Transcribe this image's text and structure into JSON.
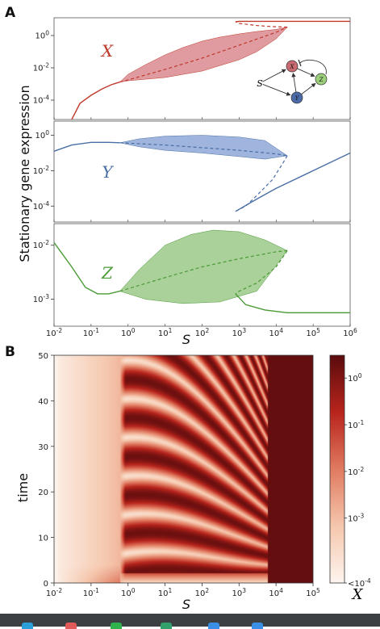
{
  "panels": {
    "a": "A",
    "b": "B"
  },
  "chart_data": [
    {
      "type": "line",
      "panel": "A",
      "ylabel": "Stationary gene expression",
      "xlabel": "S",
      "x_scale": "log",
      "xlim": [
        0.01,
        1000000
      ],
      "x_ticks": [
        "10-2",
        "10-1",
        "100",
        "101",
        "102",
        "103",
        "104",
        "105",
        "106"
      ],
      "subplots": [
        {
          "name": "X",
          "color": "#c0392b",
          "fill": "#d98a8f",
          "ylim_log": [
            -5.2,
            1.1
          ],
          "y_ticks": [
            {
              "v": 0,
              "label": "10^0"
            },
            {
              "v": -2,
              "label": "10^-2"
            },
            {
              "v": -4,
              "label": "10^-4"
            }
          ],
          "stable_low": [
            [
              0.03,
              -5.2
            ],
            [
              0.05,
              -4.2
            ],
            [
              0.1,
              -3.7
            ],
            [
              0.2,
              -3.3
            ],
            [
              0.35,
              -3.05
            ],
            [
              0.6,
              -2.88
            ]
          ],
          "unstable": [
            [
              0.6,
              -2.88
            ],
            [
              1,
              -2.75
            ],
            [
              10,
              -2.1
            ],
            [
              100,
              -1.4
            ],
            [
              1000,
              -0.6
            ],
            [
              10000,
              0.2
            ],
            [
              20000,
              0.52
            ]
          ],
          "osc_max": [
            [
              0.6,
              -2.88
            ],
            [
              1,
              -2.4
            ],
            [
              3,
              -1.8
            ],
            [
              10,
              -1.2
            ],
            [
              30,
              -0.75
            ],
            [
              100,
              -0.35
            ],
            [
              300,
              -0.1
            ],
            [
              1000,
              0.1
            ],
            [
              3000,
              0.25
            ],
            [
              10000,
              0.38
            ],
            [
              20000,
              0.52
            ]
          ],
          "osc_min": [
            [
              0.6,
              -2.88
            ],
            [
              1,
              -2.8
            ],
            [
              10,
              -2.6
            ],
            [
              100,
              -2.2
            ],
            [
              1000,
              -1.5
            ],
            [
              3000,
              -1.0
            ],
            [
              10000,
              -0.2
            ],
            [
              20000,
              0.52
            ]
          ],
          "saddle": [
            [
              20000,
              0.52
            ],
            [
              8000,
              0.55
            ],
            [
              3000,
              0.62
            ],
            [
              1000,
              0.75
            ],
            [
              800,
              0.85
            ]
          ],
          "stable_high": [
            [
              800,
              0.85
            ],
            [
              1000,
              0.88
            ],
            [
              10000,
              0.88
            ],
            [
              1000000,
              0.88
            ]
          ]
        },
        {
          "name": "Y",
          "color": "#4a6fa5",
          "fill": "#8fa8d8",
          "ylim_log": [
            -4.9,
            0.8
          ],
          "y_ticks": [
            {
              "v": 0,
              "label": "10^0"
            },
            {
              "v": -2,
              "label": "10^-2"
            },
            {
              "v": -4,
              "label": "10^-4"
            }
          ],
          "stable_low": [
            [
              0.01,
              -0.9
            ],
            [
              0.03,
              -0.55
            ],
            [
              0.1,
              -0.4
            ],
            [
              0.3,
              -0.4
            ],
            [
              0.6,
              -0.42
            ]
          ],
          "unstable": [
            [
              0.6,
              -0.42
            ],
            [
              10,
              -0.55
            ],
            [
              100,
              -0.7
            ],
            [
              1000,
              -0.85
            ],
            [
              10000,
              -1.05
            ],
            [
              20000,
              -1.15
            ]
          ],
          "osc_max": [
            [
              0.6,
              -0.42
            ],
            [
              2,
              -0.2
            ],
            [
              10,
              -0.05
            ],
            [
              100,
              0.0
            ],
            [
              1000,
              -0.1
            ],
            [
              5000,
              -0.3
            ],
            [
              20000,
              -1.15
            ]
          ],
          "osc_min": [
            [
              0.6,
              -0.42
            ],
            [
              2,
              -0.65
            ],
            [
              10,
              -0.85
            ],
            [
              100,
              -1.0
            ],
            [
              1000,
              -1.2
            ],
            [
              5000,
              -1.35
            ],
            [
              20000,
              -1.15
            ]
          ],
          "saddle": [
            [
              20000,
              -1.15
            ],
            [
              15000,
              -1.6
            ],
            [
              8000,
              -2.5
            ],
            [
              3000,
              -3.4
            ],
            [
              1500,
              -4.0
            ],
            [
              800,
              -4.3
            ]
          ],
          "stable_high": [
            [
              800,
              -4.3
            ],
            [
              3000,
              -3.6
            ],
            [
              10000,
              -3.0
            ],
            [
              100000,
              -2.0
            ],
            [
              1000000,
              -1.0
            ]
          ]
        },
        {
          "name": "Z",
          "color": "#4a9a35",
          "fill": "#9cc98a",
          "ylim_log": [
            -3.5,
            -1.6
          ],
          "y_ticks": [
            {
              "v": -2,
              "label": "10^-2"
            },
            {
              "v": -3,
              "label": "10^-3"
            }
          ],
          "stable_low": [
            [
              0.01,
              -1.95
            ],
            [
              0.03,
              -2.4
            ],
            [
              0.07,
              -2.78
            ],
            [
              0.15,
              -2.9
            ],
            [
              0.3,
              -2.9
            ],
            [
              0.6,
              -2.85
            ]
          ],
          "unstable": [
            [
              0.6,
              -2.85
            ],
            [
              10,
              -2.6
            ],
            [
              100,
              -2.4
            ],
            [
              1000,
              -2.25
            ],
            [
              10000,
              -2.12
            ],
            [
              20000,
              -2.1
            ]
          ],
          "osc_max": [
            [
              0.6,
              -2.85
            ],
            [
              2,
              -2.45
            ],
            [
              10,
              -2.0
            ],
            [
              50,
              -1.8
            ],
            [
              200,
              -1.72
            ],
            [
              1000,
              -1.75
            ],
            [
              5000,
              -1.9
            ],
            [
              20000,
              -2.1
            ]
          ],
          "osc_min": [
            [
              0.6,
              -2.85
            ],
            [
              3,
              -3.0
            ],
            [
              30,
              -3.08
            ],
            [
              300,
              -3.05
            ],
            [
              3000,
              -2.85
            ],
            [
              20000,
              -2.1
            ]
          ],
          "saddle": [
            [
              20000,
              -2.1
            ],
            [
              10000,
              -2.4
            ],
            [
              3000,
              -2.7
            ],
            [
              1000,
              -2.85
            ],
            [
              800,
              -2.9
            ]
          ],
          "stable_high": [
            [
              800,
              -2.9
            ],
            [
              1500,
              -3.1
            ],
            [
              5000,
              -3.2
            ],
            [
              20000,
              -3.25
            ],
            [
              1000000,
              -3.25
            ]
          ]
        }
      ],
      "inset": {
        "nodes": [
          "S",
          "X",
          "Y",
          "Z"
        ]
      }
    },
    {
      "type": "heatmap",
      "panel": "B",
      "xlabel": "S",
      "ylabel": "time",
      "x_scale": "log",
      "xlim": [
        0.01,
        100000
      ],
      "ylim": [
        0,
        50
      ],
      "x_ticks": [
        "10-2",
        "10-1",
        "100",
        "101",
        "102",
        "103",
        "104",
        "105"
      ],
      "y_ticks": [
        0,
        10,
        20,
        30,
        40,
        50
      ],
      "colorbar": {
        "label": "X",
        "scale": "log",
        "ticks": [
          "10^0",
          "10^-1",
          "10^-2",
          "10^-3",
          "<10^-4"
        ],
        "colors": [
          "#fdf5ef",
          "#f5c7ad",
          "#e07a60",
          "#b8241c",
          "#5a0b0d"
        ]
      },
      "oscillation": {
        "start_S": 0.6,
        "end_S": 6000,
        "period_trend": "shortest near S≈1e4, longest near S≈1–10"
      }
    }
  ]
}
